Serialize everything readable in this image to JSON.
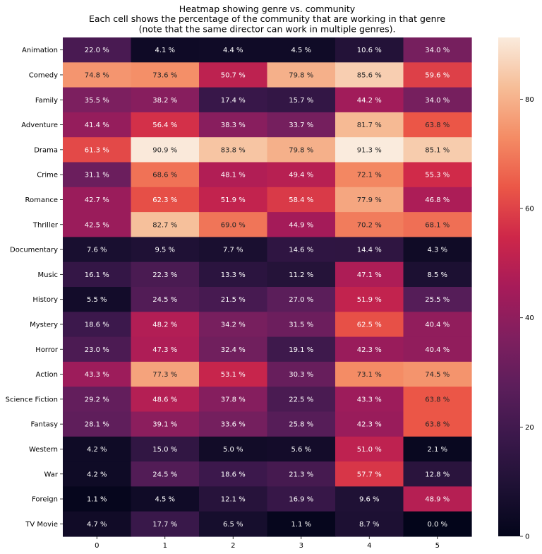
{
  "chart_data": {
    "type": "heatmap",
    "title_lines": [
      "Heatmap showing genre vs. community",
      "Each cell shows the percentage of the community that are working in that genre",
      "(note that the same director can work in multiple genres)."
    ],
    "xlabel": "",
    "ylabel": "",
    "x_categories": [
      "0",
      "1",
      "2",
      "3",
      "4",
      "5"
    ],
    "y_categories": [
      "Animation",
      "Comedy",
      "Family",
      "Adventure",
      "Drama",
      "Crime",
      "Romance",
      "Thriller",
      "Documentary",
      "Music",
      "History",
      "Mystery",
      "Horror",
      "Action",
      "Science Fiction",
      "Fantasy",
      "Western",
      "War",
      "Foreign",
      "TV Movie"
    ],
    "values": [
      [
        22.0,
        4.1,
        4.4,
        4.5,
        10.6,
        34.0
      ],
      [
        74.8,
        73.6,
        50.7,
        79.8,
        85.6,
        59.6
      ],
      [
        35.5,
        38.2,
        17.4,
        15.7,
        44.2,
        34.0
      ],
      [
        41.4,
        56.4,
        38.3,
        33.7,
        81.7,
        63.8
      ],
      [
        61.3,
        90.9,
        83.8,
        79.8,
        91.3,
        85.1
      ],
      [
        31.1,
        68.6,
        48.1,
        49.4,
        72.1,
        55.3
      ],
      [
        42.7,
        62.3,
        51.9,
        58.4,
        77.9,
        46.8
      ],
      [
        42.5,
        82.7,
        69.0,
        44.9,
        70.2,
        68.1
      ],
      [
        7.6,
        9.5,
        7.7,
        14.6,
        14.4,
        4.3
      ],
      [
        16.1,
        22.3,
        13.3,
        11.2,
        47.1,
        8.5
      ],
      [
        5.5,
        24.5,
        21.5,
        27.0,
        51.9,
        25.5
      ],
      [
        18.6,
        48.2,
        34.2,
        31.5,
        62.5,
        40.4
      ],
      [
        23.0,
        47.3,
        32.4,
        19.1,
        42.3,
        40.4
      ],
      [
        43.3,
        77.3,
        53.1,
        30.3,
        73.1,
        74.5
      ],
      [
        29.2,
        48.6,
        37.8,
        22.5,
        43.3,
        63.8
      ],
      [
        28.1,
        39.1,
        33.6,
        25.8,
        42.3,
        63.8
      ],
      [
        4.2,
        15.0,
        5.0,
        5.6,
        51.0,
        2.1
      ],
      [
        4.2,
        24.5,
        18.6,
        21.3,
        57.7,
        12.8
      ],
      [
        1.1,
        4.5,
        12.1,
        16.9,
        9.6,
        48.9
      ],
      [
        4.7,
        17.7,
        6.5,
        1.1,
        8.7,
        0.0
      ]
    ],
    "value_suffix": " %",
    "colormap": "rocket",
    "color_range": [
      0,
      91.3
    ],
    "colorbar_ticks": [
      0,
      20,
      40,
      60,
      80
    ],
    "grid": false
  }
}
